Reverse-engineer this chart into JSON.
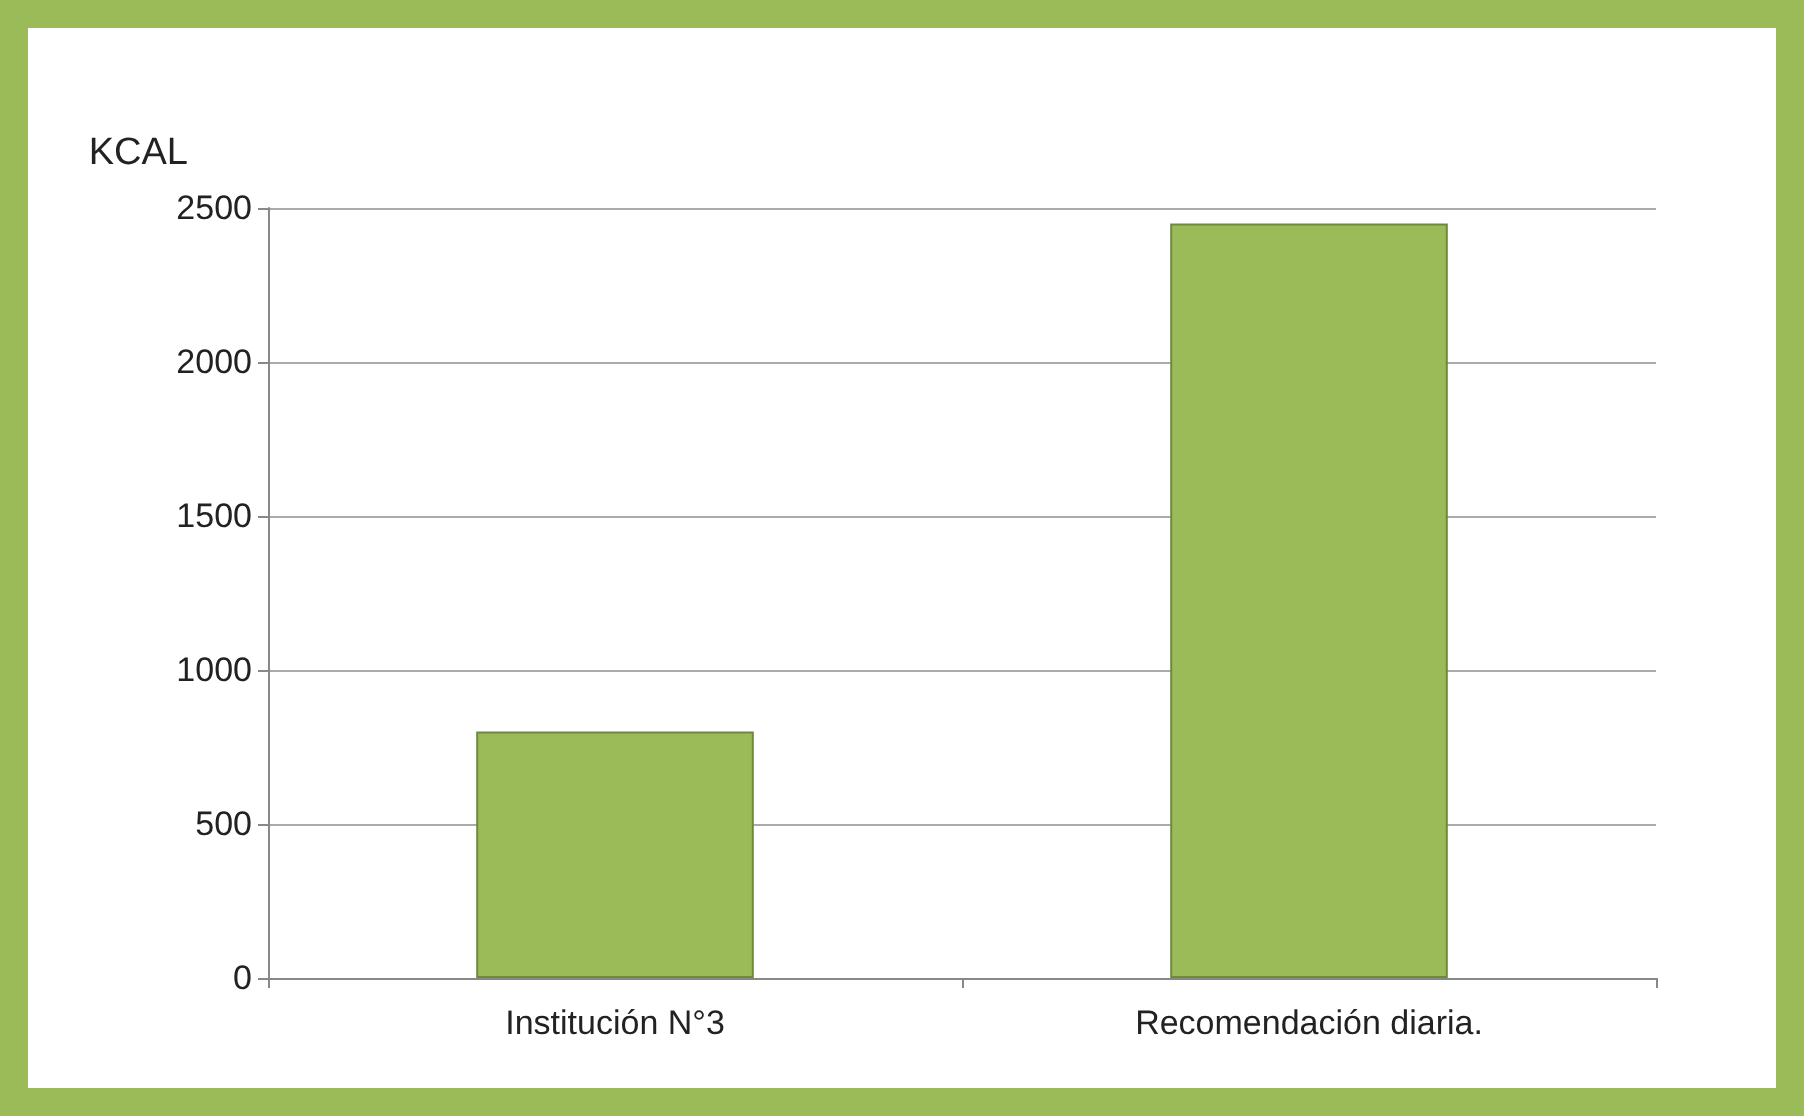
{
  "chart_data": {
    "type": "bar",
    "ylabel": "KCAL",
    "categories": [
      "Institución N°3",
      "Recomendación diaria."
    ],
    "values": [
      800,
      2450
    ],
    "color": "#9bbb59",
    "ylim": [
      0,
      2500
    ],
    "yticks": [
      0,
      500,
      1000,
      1500,
      2000,
      2500
    ],
    "grid": true
  }
}
